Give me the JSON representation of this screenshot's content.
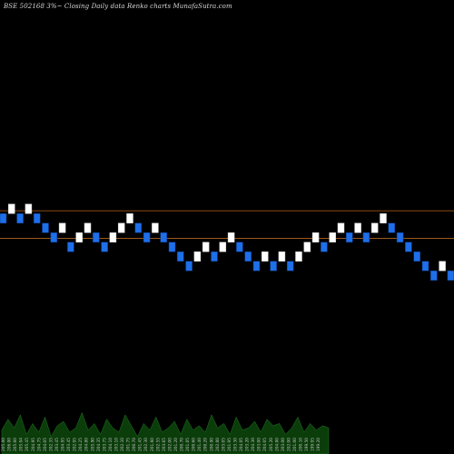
{
  "chart_data": {
    "type": "renko",
    "title": "BSE 502168  3%~  Closing Daily data  Renko  charts MunafaSutra.com",
    "colors": {
      "background": "#000000",
      "up_brick": "#ffffff",
      "down_brick": "#1e6fe8",
      "brick_border": "#0a3a8a",
      "reference_line": "#b5651d",
      "volume": "#0b3d0b",
      "volume_edge": "#2a8a2a"
    },
    "ylim": [
      186.0,
      226.0
    ],
    "reference_lines": [
      205.8,
      202.9
    ],
    "brick_size": 1.0,
    "bricks": [
      {
        "value": 205,
        "dir": "down"
      },
      {
        "value": 206,
        "dir": "up"
      },
      {
        "value": 205,
        "dir": "down"
      },
      {
        "value": 206,
        "dir": "up"
      },
      {
        "value": 205,
        "dir": "down"
      },
      {
        "value": 204,
        "dir": "down"
      },
      {
        "value": 203,
        "dir": "down"
      },
      {
        "value": 204,
        "dir": "up"
      },
      {
        "value": 202,
        "dir": "down"
      },
      {
        "value": 203,
        "dir": "up"
      },
      {
        "value": 204,
        "dir": "up"
      },
      {
        "value": 203,
        "dir": "down"
      },
      {
        "value": 202,
        "dir": "down"
      },
      {
        "value": 203,
        "dir": "up"
      },
      {
        "value": 204,
        "dir": "up"
      },
      {
        "value": 205,
        "dir": "up"
      },
      {
        "value": 204,
        "dir": "down"
      },
      {
        "value": 203,
        "dir": "down"
      },
      {
        "value": 204,
        "dir": "up"
      },
      {
        "value": 203,
        "dir": "down"
      },
      {
        "value": 202,
        "dir": "down"
      },
      {
        "value": 201,
        "dir": "down"
      },
      {
        "value": 200,
        "dir": "down"
      },
      {
        "value": 201,
        "dir": "up"
      },
      {
        "value": 202,
        "dir": "up"
      },
      {
        "value": 201,
        "dir": "down"
      },
      {
        "value": 202,
        "dir": "up"
      },
      {
        "value": 203,
        "dir": "up"
      },
      {
        "value": 202,
        "dir": "down"
      },
      {
        "value": 201,
        "dir": "down"
      },
      {
        "value": 200,
        "dir": "down"
      },
      {
        "value": 201,
        "dir": "up"
      },
      {
        "value": 200,
        "dir": "down"
      },
      {
        "value": 201,
        "dir": "up"
      },
      {
        "value": 200,
        "dir": "down"
      },
      {
        "value": 201,
        "dir": "up"
      },
      {
        "value": 202,
        "dir": "up"
      },
      {
        "value": 203,
        "dir": "up"
      },
      {
        "value": 202,
        "dir": "down"
      },
      {
        "value": 203,
        "dir": "up"
      },
      {
        "value": 204,
        "dir": "up"
      },
      {
        "value": 203,
        "dir": "down"
      },
      {
        "value": 204,
        "dir": "up"
      },
      {
        "value": 203,
        "dir": "down"
      },
      {
        "value": 204,
        "dir": "up"
      },
      {
        "value": 205,
        "dir": "up"
      },
      {
        "value": 204,
        "dir": "down"
      },
      {
        "value": 203,
        "dir": "down"
      },
      {
        "value": 202,
        "dir": "down"
      },
      {
        "value": 201,
        "dir": "down"
      },
      {
        "value": 200,
        "dir": "down"
      },
      {
        "value": 199,
        "dir": "down"
      },
      {
        "value": 200,
        "dir": "up"
      },
      {
        "value": 199,
        "dir": "down"
      }
    ],
    "date_labels": [
      "205.00",
      "206.00",
      "205.60",
      "205.94",
      "205.45",
      "204.95",
      "204.75",
      "204.05",
      "202.35",
      "203.45",
      "204.95",
      "203.45",
      "202.95",
      "204.25",
      "204.80",
      "205.90",
      "204.35",
      "203.75",
      "204.10",
      "203.10",
      "202.10",
      "201.75",
      "200.70",
      "201.45",
      "202.30",
      "201.60",
      "202.55",
      "203.65",
      "202.00",
      "201.20",
      "200.70",
      "201.05",
      "200.60",
      "201.40",
      "200.20",
      "200.90",
      "202.00",
      "203.05",
      "201.95",
      "203.30",
      "204.05",
      "203.20",
      "204.30",
      "203.00",
      "204.05",
      "205.20",
      "204.00",
      "203.00",
      "202.00",
      "201.00",
      "200.10",
      "199.50",
      "199.95",
      "199.20"
    ],
    "volumes": [
      0.55,
      0.8,
      0.6,
      0.9,
      0.45,
      0.7,
      0.5,
      0.85,
      0.4,
      0.65,
      0.75,
      0.5,
      0.6,
      0.95,
      0.55,
      0.7,
      0.45,
      0.8,
      0.6,
      0.5,
      0.9,
      0.65,
      0.4,
      0.7,
      0.55,
      0.85,
      0.5,
      0.6,
      0.75,
      0.45,
      0.8,
      0.55,
      0.65,
      0.5,
      0.9,
      0.6,
      0.7,
      0.45,
      0.85,
      0.55,
      0.6,
      0.75,
      0.5,
      0.8,
      0.65,
      0.7,
      0.45,
      0.6,
      0.85,
      0.5,
      0.7,
      0.55,
      0.65,
      0.6
    ]
  }
}
